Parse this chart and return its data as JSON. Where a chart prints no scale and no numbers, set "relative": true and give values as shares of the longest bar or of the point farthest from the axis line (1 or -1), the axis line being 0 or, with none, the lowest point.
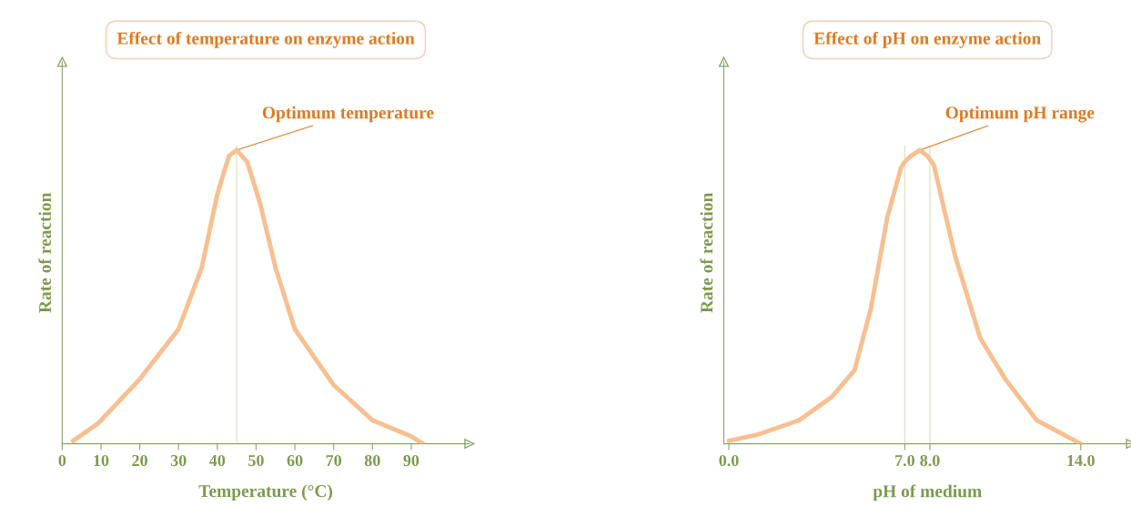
{
  "chart_data": [
    {
      "type": "line",
      "title": "Effect of temperature on enzyme action",
      "xlabel": "Temperature (°C)",
      "ylabel": "Rate of reaction",
      "relative": true,
      "x": [
        2.8,
        9.3,
        20,
        30,
        36,
        40,
        43,
        45,
        47.7,
        51,
        55,
        60,
        70,
        80,
        90,
        93
      ],
      "series": [
        {
          "color": "#f8bf90",
          "values": [
            0.01,
            0.07,
            0.22,
            0.39,
            0.6,
            0.85,
            0.98,
            1.0,
            0.96,
            0.82,
            0.6,
            0.39,
            0.2,
            0.08,
            0.025,
            0.0
          ]
        }
      ],
      "xlim": [
        0,
        105
      ],
      "xticks": [
        0,
        10,
        20,
        30,
        40,
        50,
        60,
        70,
        80,
        90
      ],
      "ref_lines": [
        {
          "axis": "x",
          "value": 45,
          "color": "#dfe6c8"
        }
      ],
      "annotations": [
        {
          "text": "Optimum temperature",
          "x": 45,
          "y": 1.0
        }
      ],
      "grid": false,
      "marker": "none",
      "line_style": "solid"
    },
    {
      "type": "line",
      "title": "Effect of pH on enzyme action",
      "xlabel": "pH of medium",
      "ylabel": "Rate of reaction",
      "relative": true,
      "x": [
        0,
        1.1,
        2.8,
        4.1,
        5.0,
        5.65,
        6.3,
        6.85,
        7.0,
        7.25,
        7.6,
        7.9,
        8.15,
        9.0,
        10.0,
        11.0,
        12.25,
        14.0
      ],
      "series": [
        {
          "color": "#f8bf90",
          "values": [
            0.01,
            0.03,
            0.08,
            0.16,
            0.25,
            0.46,
            0.77,
            0.94,
            0.96,
            0.98,
            1.0,
            0.98,
            0.95,
            0.64,
            0.36,
            0.22,
            0.08,
            0.0
          ]
        }
      ],
      "xlim": [
        -0.2,
        16
      ],
      "xticks": [
        {
          "value": 0,
          "label": "0.0"
        },
        {
          "value": 7,
          "label": "7.0"
        },
        {
          "value": 8,
          "label": "8.0"
        },
        {
          "value": 14,
          "label": "14.0"
        }
      ],
      "ref_lines": [
        {
          "axis": "x",
          "value": 7,
          "color": "#dfe6c8"
        },
        {
          "axis": "x",
          "value": 8,
          "color": "#dfe6c8"
        }
      ],
      "annotations": [
        {
          "text": "Optimum pH range",
          "x": 7.6,
          "y": 1.0
        }
      ],
      "grid": false,
      "marker": "none",
      "line_style": "solid"
    }
  ]
}
